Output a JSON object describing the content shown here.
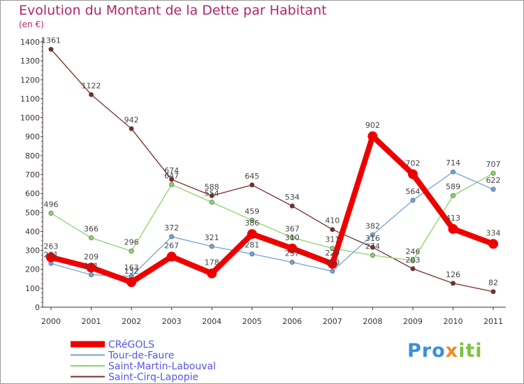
{
  "chart_data": {
    "type": "line",
    "title": "Evolution du Montant de la Dette par Habitant",
    "subtitle": "(en €)",
    "xlabel": "",
    "ylabel": "",
    "x": [
      "2000",
      "2001",
      "2002",
      "2003",
      "2004",
      "2005",
      "2006",
      "2007",
      "2008",
      "2009",
      "2010",
      "2011"
    ],
    "ylim": [
      0,
      1400
    ],
    "yticks": [
      0,
      100,
      200,
      300,
      400,
      500,
      600,
      700,
      800,
      900,
      1000,
      1100,
      1200,
      1300,
      1400
    ],
    "grid": false,
    "legend_position": "bottom-left",
    "series": [
      {
        "name": "CRéGOLS",
        "color": "#ee0000",
        "values": [
          263,
          209,
          132,
          267,
          178,
          386,
          310,
          229,
          902,
          702,
          413,
          334
        ],
        "labels": [
          "263",
          "209",
          "132",
          "267",
          "178",
          "386",
          "310",
          "229",
          "902",
          "702",
          "413",
          "334"
        ]
      },
      {
        "name": "Tour-de-Faure",
        "color": "#6fa3d8",
        "values": [
          231,
          171,
          163,
          372,
          321,
          281,
          237,
          190,
          382,
          564,
          714,
          622
        ],
        "labels": [
          "231",
          "171",
          "163",
          "372",
          "321",
          "281",
          "237",
          "190",
          "382",
          "564",
          "714",
          "622"
        ]
      },
      {
        "name": "Saint-Martin-Labouval",
        "color": "#8ed36a",
        "values": [
          496,
          366,
          296,
          647,
          554,
          459,
          367,
          311,
          274,
          246,
          589,
          707
        ],
        "labels": [
          "496",
          "366",
          "296",
          "647",
          "554",
          "459",
          "367",
          "311",
          "274",
          "246",
          "589",
          "707"
        ]
      },
      {
        "name": "Saint-Cirq-Lapopie",
        "color": "#7a2a2a",
        "values": [
          1361,
          1122,
          942,
          674,
          588,
          645,
          534,
          410,
          316,
          203,
          126,
          82
        ],
        "labels": [
          "1361",
          "1122",
          "942",
          "674",
          "588",
          "645",
          "534",
          "410",
          "316",
          "203",
          "126",
          "82"
        ]
      }
    ]
  },
  "logo": {
    "part1": "Pro",
    "part2": "x",
    "part3": "iti"
  }
}
